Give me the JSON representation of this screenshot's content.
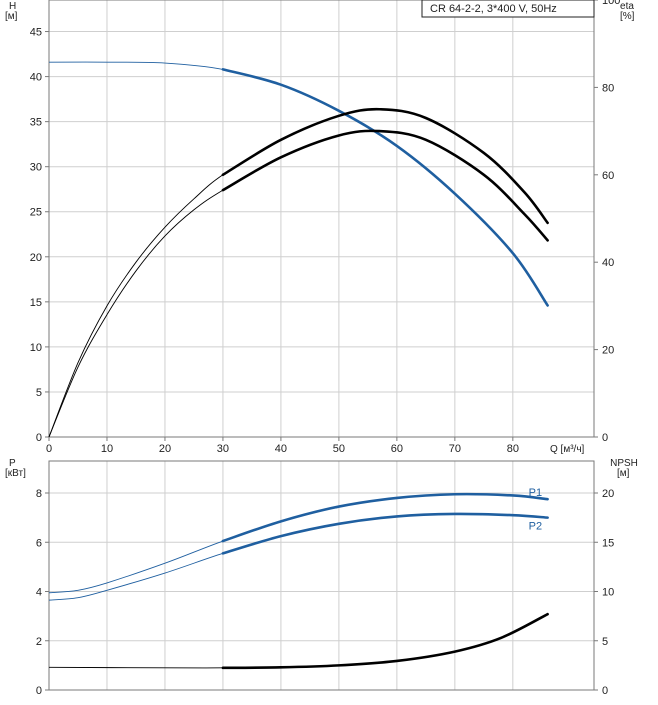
{
  "chart_data": [
    {
      "type": "line",
      "title_box": "CR 64-2-2, 3*400 V, 50Hz",
      "y_left": {
        "label": "H",
        "unit": "[м]",
        "ticks": [
          0,
          5,
          10,
          15,
          20,
          25,
          30,
          35,
          40,
          45
        ],
        "range": [
          0,
          48.5
        ]
      },
      "y_right": {
        "label": "eta",
        "unit": "[%]",
        "ticks": [
          0,
          20,
          40,
          60,
          80,
          100
        ],
        "range": [
          0,
          100
        ]
      },
      "x": {
        "label": "Q [м³/ч]",
        "ticks": [
          0,
          10,
          20,
          30,
          40,
          50,
          60,
          70,
          80
        ],
        "range": [
          0,
          94
        ]
      },
      "grid": true,
      "series": [
        {
          "axis": "left",
          "color": "#1f5fa0",
          "points": [
            [
              0,
              41.6
            ],
            [
              10,
              41.6
            ],
            [
              20,
              41.5
            ],
            [
              30,
              40.8
            ],
            [
              40,
              39.1
            ],
            [
              50,
              36.2
            ],
            [
              60,
              32.3
            ],
            [
              70,
              27.0
            ],
            [
              80,
              20.4
            ],
            [
              86,
              14.6
            ]
          ],
          "thin_until": 30
        },
        {
          "axis": "right",
          "color": "#000000",
          "points": [
            [
              0,
              0
            ],
            [
              5,
              16
            ],
            [
              10,
              28
            ],
            [
              15,
              38
            ],
            [
              20,
              46
            ],
            [
              25,
              52
            ],
            [
              30,
              56.5
            ],
            [
              40,
              64
            ],
            [
              50,
              69
            ],
            [
              57,
              70
            ],
            [
              65,
              68
            ],
            [
              75,
              60
            ],
            [
              82,
              51
            ],
            [
              86,
              45
            ]
          ],
          "thin_until": 30
        },
        {
          "axis": "right",
          "color": "#000000",
          "points": [
            [
              0,
              0
            ],
            [
              5,
              17
            ],
            [
              10,
              30
            ],
            [
              15,
              40
            ],
            [
              20,
              48
            ],
            [
              25,
              54.5
            ],
            [
              30,
              60
            ],
            [
              40,
              68
            ],
            [
              50,
              73.5
            ],
            [
              57,
              75
            ],
            [
              65,
              73
            ],
            [
              75,
              65
            ],
            [
              82,
              56
            ],
            [
              86,
              49
            ]
          ],
          "thin_until": 30
        }
      ]
    },
    {
      "type": "line",
      "y_left": {
        "label": "P",
        "unit": "[кВт]",
        "ticks": [
          0,
          2,
          4,
          6,
          8
        ],
        "range": [
          0,
          9.3
        ]
      },
      "y_right": {
        "label": "NPSH",
        "unit": "[м]",
        "ticks": [
          0,
          5,
          10,
          15,
          20
        ],
        "range": [
          0,
          23.25
        ]
      },
      "x": {
        "range": [
          0,
          94
        ]
      },
      "grid": true,
      "series": [
        {
          "name": "P1",
          "axis": "left",
          "color": "#1f5fa0",
          "points": [
            [
              0,
              3.95
            ],
            [
              5,
              4.05
            ],
            [
              10,
              4.35
            ],
            [
              20,
              5.15
            ],
            [
              30,
              6.05
            ],
            [
              40,
              6.85
            ],
            [
              50,
              7.45
            ],
            [
              60,
              7.8
            ],
            [
              70,
              7.95
            ],
            [
              80,
              7.9
            ],
            [
              86,
              7.75
            ]
          ],
          "thin_until": 30
        },
        {
          "name": "P2",
          "axis": "left",
          "color": "#1f5fa0",
          "points": [
            [
              0,
              3.65
            ],
            [
              5,
              3.75
            ],
            [
              10,
              4.05
            ],
            [
              20,
              4.75
            ],
            [
              30,
              5.55
            ],
            [
              40,
              6.25
            ],
            [
              50,
              6.75
            ],
            [
              60,
              7.05
            ],
            [
              70,
              7.15
            ],
            [
              80,
              7.1
            ],
            [
              86,
              7.0
            ]
          ],
          "thin_until": 30
        },
        {
          "axis": "right",
          "color": "#000000",
          "points": [
            [
              0,
              2.3
            ],
            [
              20,
              2.25
            ],
            [
              30,
              2.25
            ],
            [
              40,
              2.3
            ],
            [
              50,
              2.5
            ],
            [
              60,
              2.95
            ],
            [
              70,
              3.9
            ],
            [
              78,
              5.3
            ],
            [
              86,
              7.7
            ]
          ],
          "thin_until": 30
        }
      ]
    }
  ]
}
